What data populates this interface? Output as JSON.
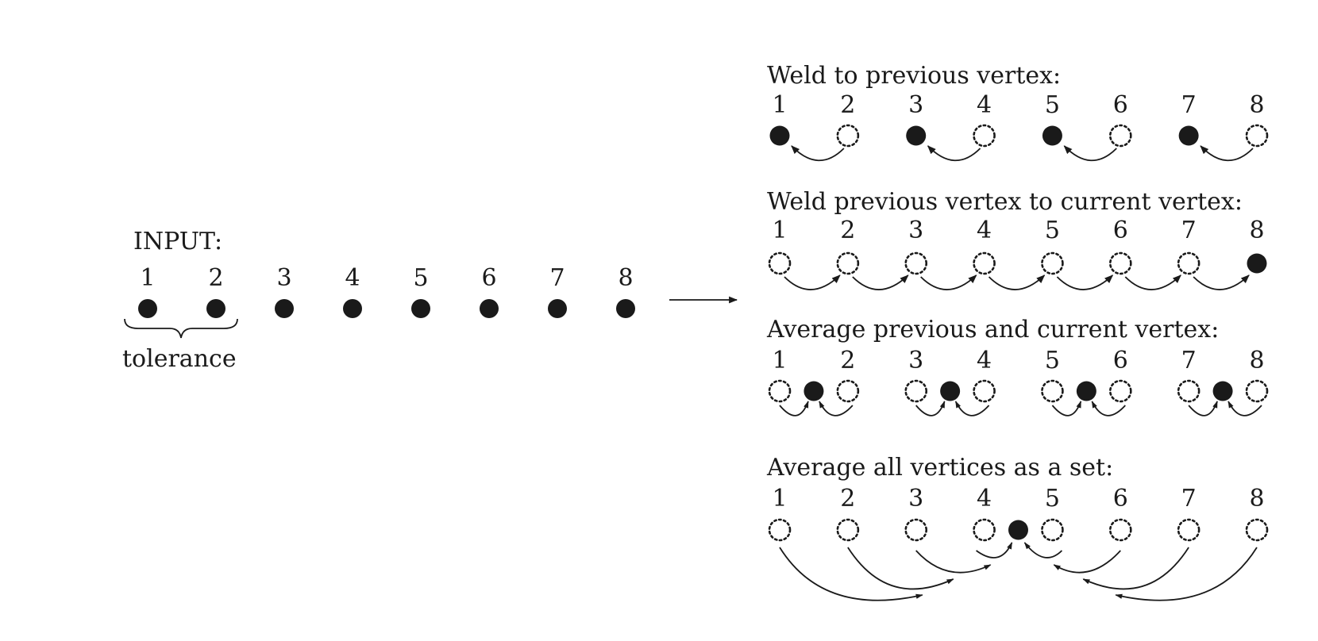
{
  "input": {
    "title": "INPUT:",
    "numbers": [
      "1",
      "2",
      "3",
      "4",
      "5",
      "6",
      "7",
      "8"
    ],
    "brace_label": "tolerance"
  },
  "panels": [
    {
      "title": "Weld to previous vertex:",
      "numbers": [
        "1",
        "2",
        "3",
        "4",
        "5",
        "6",
        "7",
        "8"
      ],
      "solid": [
        "1",
        "3",
        "5",
        "7"
      ],
      "ghost": [
        "2",
        "4",
        "6",
        "8"
      ]
    },
    {
      "title": "Weld previous vertex to current vertex:",
      "numbers": [
        "1",
        "2",
        "3",
        "4",
        "5",
        "6",
        "7",
        "8"
      ],
      "solid": [
        "8"
      ],
      "ghost": [
        "1",
        "2",
        "3",
        "4",
        "5",
        "6",
        "7"
      ]
    },
    {
      "title": "Average previous and current vertex:",
      "numbers": [
        "1",
        "2",
        "3",
        "4",
        "5",
        "6",
        "7",
        "8"
      ],
      "solid": [
        "1.5",
        "3.5",
        "5.5",
        "7.5"
      ],
      "ghost": [
        "1",
        "2",
        "3",
        "4",
        "5",
        "6",
        "7",
        "8"
      ]
    },
    {
      "title": "Average all vertices as a set:",
      "numbers": [
        "1",
        "2",
        "3",
        "4",
        "5",
        "6",
        "7",
        "8"
      ],
      "solid": [
        "4.5"
      ],
      "ghost": [
        "1",
        "2",
        "3",
        "4",
        "5",
        "6",
        "7",
        "8"
      ]
    }
  ]
}
